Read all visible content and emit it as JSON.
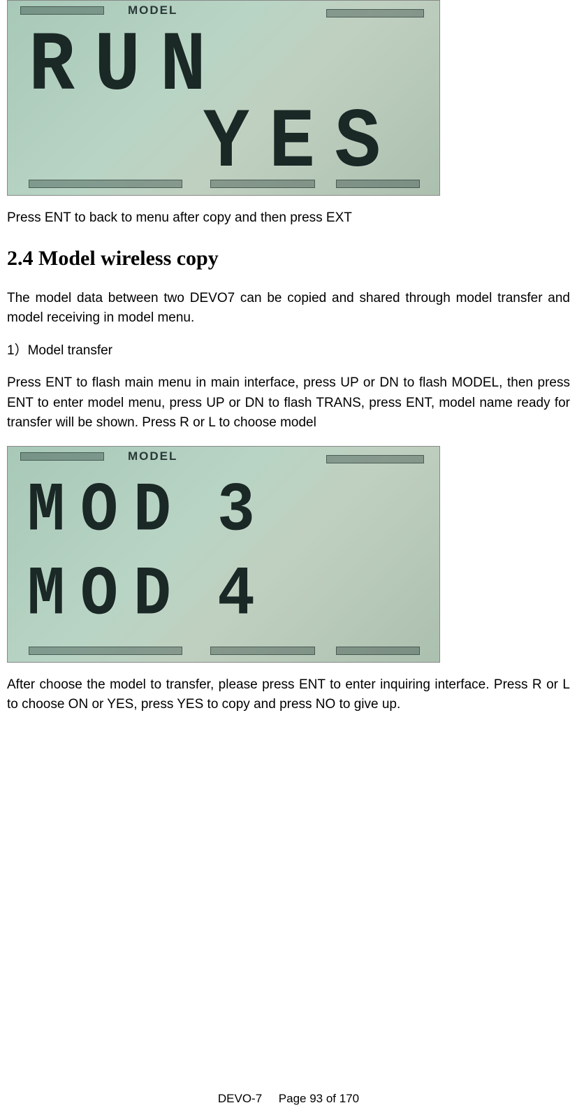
{
  "lcd1": {
    "label": "MODEL",
    "row1_chars": [
      "R",
      "U",
      "N"
    ],
    "row2_chars": [
      "Y",
      "E",
      "S"
    ],
    "bg_gradient": [
      "#a8c8b8",
      "#b8d4c4",
      "#c0d0c0",
      "#acc0b0"
    ],
    "char_color": "#1a2826",
    "label_color": "#2a3838"
  },
  "para1": "Press ENT to back to menu after copy and then press EXT",
  "heading": "2.4 Model wireless copy",
  "para2": "The model data between two DEVO7 can be copied and shared through model transfer and model receiving in model menu.",
  "subhead": "1）Model transfer",
  "para3": "Press ENT to flash main menu in main interface, press UP or DN to flash MODEL, then press ENT to enter model menu, press UP or DN to flash TRANS, press ENT, model name ready for transfer will be shown. Press R or L to choose model",
  "lcd2": {
    "label": "MODEL",
    "row1_chars": [
      "M",
      "O",
      "D",
      " ",
      " ",
      "3"
    ],
    "row2_chars": [
      "M",
      "O",
      "D",
      " ",
      " ",
      "4"
    ],
    "bg_gradient": [
      "#a8c8b8",
      "#b8d4c4",
      "#c0d0c0",
      "#acc0b0"
    ],
    "char_color": "#1a2826",
    "label_color": "#2a3838"
  },
  "para4": "After choose the model to transfer, please press ENT to enter inquiring interface. Press R or L to choose ON or YES, press YES to copy and press NO to give up.",
  "footer": {
    "device": "DEVO-7",
    "page": "Page 93 of 170"
  },
  "styles": {
    "body_font_size_pt": 14,
    "heading_font_size_pt": 22,
    "heading_font_family": "Times New Roman",
    "body_font_family": "Arial",
    "text_color": "#000000",
    "page_bg": "#ffffff",
    "lcd_border": "#888888"
  }
}
